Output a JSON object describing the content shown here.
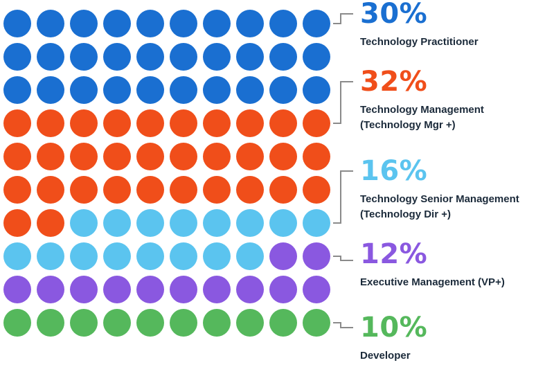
{
  "chart_data": {
    "type": "waffle",
    "rows": 10,
    "cols": 10,
    "series": [
      {
        "name": "Technology Practitioner",
        "line2": "",
        "percent_label": "30%",
        "value": 30,
        "color": "#1a6fd1"
      },
      {
        "name": "Technology Management",
        "line2": "(Technology Mgr +)",
        "percent_label": "32%",
        "value": 32,
        "color": "#f04e1a"
      },
      {
        "name": "Technology Senior Management",
        "line2": "(Technology Dir +)",
        "percent_label": "16%",
        "value": 16,
        "color": "#5bc4ef"
      },
      {
        "name": "Executive Management (VP+)",
        "line2": "",
        "percent_label": "12%",
        "value": 12,
        "color": "#8a58e0"
      },
      {
        "name": "Developer",
        "line2": "",
        "percent_label": "10%",
        "value": 10,
        "color": "#55b85c"
      }
    ],
    "connector_color": "#8a8a8a"
  }
}
